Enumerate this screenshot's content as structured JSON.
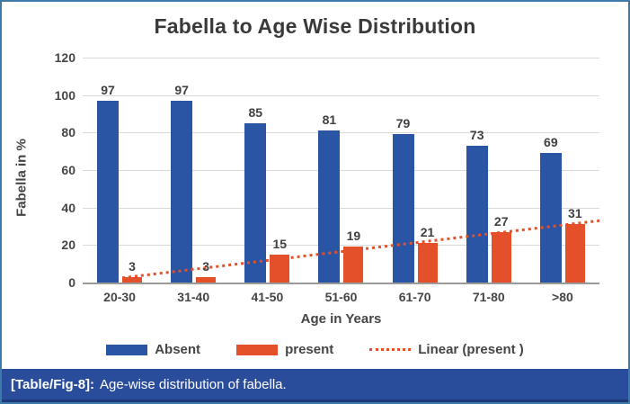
{
  "figure": {
    "caption_label": "[Table/Fig-8]:",
    "caption_text": "Age-wise distribution of fabella."
  },
  "chart_data": {
    "type": "bar",
    "title": "Fabella to Age Wise Distribution",
    "xlabel": "Age in Years",
    "ylabel": "Fabella in %",
    "ylim": [
      0,
      120
    ],
    "yticks": [
      0,
      20,
      40,
      60,
      80,
      100,
      120
    ],
    "grid": true,
    "legend_position": "bottom",
    "categories": [
      "20-30",
      "31-40",
      "41-50",
      "51-60",
      "61-70",
      "71-80",
      ">80"
    ],
    "series": [
      {
        "name": "Absent",
        "color": "#2a55a4",
        "values": [
          97,
          97,
          85,
          81,
          79,
          73,
          69
        ]
      },
      {
        "name": "present",
        "color": "#e4502a",
        "values": [
          3,
          3,
          15,
          19,
          21,
          27,
          31
        ]
      }
    ],
    "trendline": {
      "name": "Linear (present )",
      "color": "#e4502a",
      "style": "dotted",
      "start_value": 2.5,
      "end_value": 33
    }
  },
  "colors": {
    "frame_border": "#3d7aa9",
    "caption_background": "#2a4d9b",
    "gridline": "#d9d9d9",
    "axis_line": "#9a9a9a",
    "text": "#454545"
  }
}
